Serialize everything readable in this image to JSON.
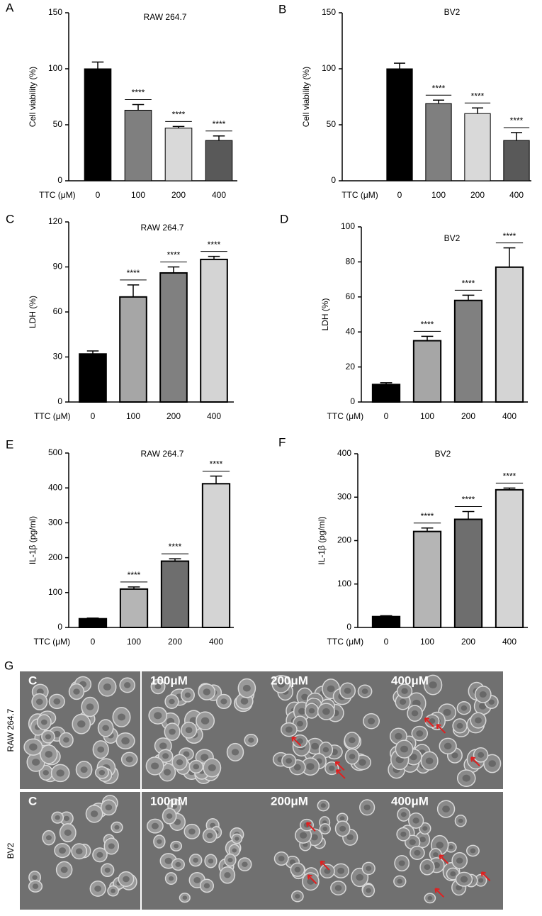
{
  "chart_data": [
    {
      "type": "bar",
      "panel": "A",
      "title": "RAW 264.7",
      "ylabel": "Cell viability (%)",
      "xlabel": "TTC (μM)",
      "categories": [
        "0",
        "100",
        "200",
        "400"
      ],
      "values": [
        100,
        63,
        47,
        36
      ],
      "errors": [
        6,
        5,
        1.5,
        4
      ],
      "significance": [
        null,
        "****",
        "****",
        "****"
      ],
      "colors": [
        "#000000",
        "#7f7f7f",
        "#d9d9d9",
        "#595959"
      ],
      "ylim": [
        0,
        150
      ],
      "yticks": [
        0,
        50,
        100,
        150
      ]
    },
    {
      "type": "bar",
      "panel": "B",
      "title": "BV2",
      "ylabel": "Cell viability (%)",
      "xlabel": "TTC (μM)",
      "categories": [
        "0",
        "100",
        "200",
        "400"
      ],
      "values": [
        100,
        69,
        60,
        36
      ],
      "errors": [
        5,
        3,
        5,
        7
      ],
      "significance": [
        null,
        "****",
        "****",
        "****"
      ],
      "colors": [
        "#000000",
        "#7f7f7f",
        "#d9d9d9",
        "#595959"
      ],
      "ylim": [
        0,
        150
      ],
      "yticks": [
        0,
        50,
        100,
        150
      ]
    },
    {
      "type": "bar",
      "panel": "C",
      "title": "RAW 264.7",
      "ylabel": "LDH (%)",
      "xlabel": "TTC (μM)",
      "categories": [
        "0",
        "100",
        "200",
        "400"
      ],
      "values": [
        32,
        70,
        86,
        95
      ],
      "errors": [
        2,
        8,
        4,
        2
      ],
      "significance": [
        null,
        "****",
        "****",
        "****"
      ],
      "colors": [
        "#000000",
        "#a6a6a6",
        "#808080",
        "#d4d4d4"
      ],
      "ylim": [
        0,
        120
      ],
      "yticks": [
        0,
        30,
        60,
        90,
        120
      ]
    },
    {
      "type": "bar",
      "panel": "D",
      "title": "BV2",
      "ylabel": "LDH (%)",
      "xlabel": "TTC (μM)",
      "categories": [
        "0",
        "100",
        "200",
        "400"
      ],
      "values": [
        10,
        35,
        58,
        77
      ],
      "errors": [
        1,
        2.5,
        3,
        11
      ],
      "significance": [
        null,
        "****",
        "****",
        "****"
      ],
      "colors": [
        "#000000",
        "#a6a6a6",
        "#808080",
        "#d4d4d4"
      ],
      "ylim": [
        0,
        100
      ],
      "yticks": [
        0,
        20,
        40,
        60,
        80,
        100
      ]
    },
    {
      "type": "bar",
      "panel": "E",
      "title": "RAW 264.7",
      "ylabel": "IL-1β (pg/ml)",
      "xlabel": "TTC (μM)",
      "categories": [
        "0",
        "100",
        "200",
        "400"
      ],
      "values": [
        25,
        110,
        190,
        412
      ],
      "errors": [
        2,
        6,
        7,
        22
      ],
      "significance": [
        null,
        "****",
        "****",
        "****"
      ],
      "colors": [
        "#000000",
        "#b5b5b5",
        "#6e6e6e",
        "#d4d4d4"
      ],
      "ylim": [
        0,
        500
      ],
      "yticks": [
        0,
        100,
        200,
        300,
        400,
        500
      ]
    },
    {
      "type": "bar",
      "panel": "F",
      "title": "BV2",
      "ylabel": "IL-1β (pg/ml)",
      "xlabel": "TTC (μM)",
      "categories": [
        "0",
        "100",
        "200",
        "400"
      ],
      "values": [
        25,
        221,
        249,
        317
      ],
      "errors": [
        2,
        8,
        18,
        4
      ],
      "significance": [
        null,
        "****",
        "****",
        "****"
      ],
      "colors": [
        "#000000",
        "#b5b5b5",
        "#6e6e6e",
        "#d4d4d4"
      ],
      "ylim": [
        0,
        400
      ],
      "yticks": [
        0,
        100,
        200,
        300,
        400
      ]
    }
  ],
  "panel_g": {
    "panel": "G",
    "rows": [
      "RAW 264.7",
      "BV2"
    ],
    "images": [
      [
        "C",
        "100μM",
        "200μM",
        "400μM"
      ],
      [
        "C",
        "100μM",
        "200μM",
        "400μM"
      ]
    ]
  }
}
